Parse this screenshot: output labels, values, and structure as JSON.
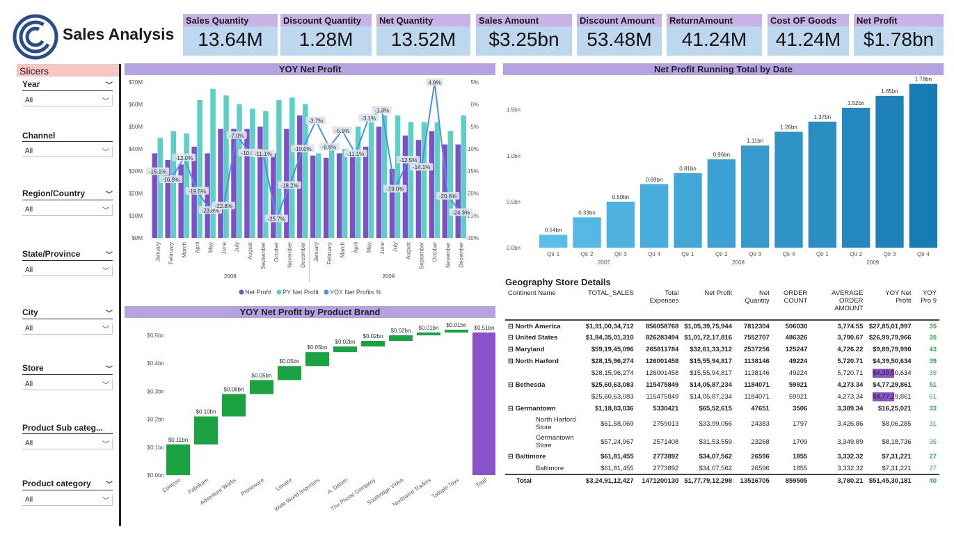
{
  "header": {
    "title": "Sales Analysis",
    "logo_icon": "logo-c-icon"
  },
  "kpis": [
    {
      "label": "Sales Quantity",
      "value": "13.64M"
    },
    {
      "label": "Discount Quantity",
      "value": "1.28M"
    },
    {
      "label": "Net Quantity",
      "value": "13.52M"
    },
    {
      "label": "Sales Amount",
      "value": "$3.25bn"
    },
    {
      "label": "Discount Amount",
      "value": "53.48M"
    },
    {
      "label": "ReturnAmount",
      "value": "41.24M"
    },
    {
      "label": "Cost OF Goods",
      "value": "41.24M"
    },
    {
      "label": "Net Profit",
      "value": "$1.78bn"
    }
  ],
  "slicers": {
    "title": "Slicers",
    "items": [
      {
        "name": "Year",
        "value": "All"
      },
      {
        "name": "Channel",
        "value": "All"
      },
      {
        "name": "Region/Country",
        "value": "All"
      },
      {
        "name": "State/Province",
        "value": "All"
      },
      {
        "name": "City",
        "value": "All"
      },
      {
        "name": "Store",
        "value": "All"
      },
      {
        "name": "Product Sub categ...",
        "value": "All"
      },
      {
        "name": "Product category",
        "value": "All"
      }
    ]
  },
  "chart_data": [
    {
      "type": "bar",
      "title": "YOY Net Profit",
      "categories": [
        "January",
        "February",
        "March",
        "April",
        "May",
        "June",
        "July",
        "August",
        "September",
        "October",
        "November",
        "December",
        "January",
        "February",
        "March",
        "April",
        "May",
        "June",
        "July",
        "August",
        "September",
        "October",
        "November",
        "December"
      ],
      "groups": [
        "2008",
        "2009"
      ],
      "series": [
        {
          "name": "Net Profit",
          "color": "#7f4fc8",
          "values": [
            38,
            35,
            33,
            41,
            38,
            49,
            49,
            49,
            50,
            38,
            49,
            55,
            37,
            36,
            38,
            37,
            41,
            50,
            31,
            46,
            44,
            48,
            42,
            42
          ]
        },
        {
          "name": "PY Net Profit",
          "color": "#5ccfc6",
          "values": [
            45,
            48,
            47,
            62,
            67,
            64,
            60,
            58,
            57,
            62,
            63,
            60,
            38,
            40,
            40,
            50,
            52,
            55,
            55,
            52,
            52,
            52,
            48,
            55
          ]
        },
        {
          "name": "YOY Net Profits %",
          "color": "#4a8df0",
          "values": [
            -15.1,
            -16.9,
            -12.0,
            -19.5,
            -23.8,
            -22.8,
            -7.0,
            -10.9,
            -11.1,
            -25.7,
            -18.2,
            -10.0,
            -3.7,
            -9.6,
            -5.9,
            -11.1,
            -3.1,
            -1.3,
            -19.0,
            -12.5,
            -14.1,
            4.9,
            -20.6,
            -24.3
          ]
        }
      ],
      "data_labels": [
        "-15.1%",
        "-16.9%",
        "-12.0%",
        "-19.5%",
        "-23.8%",
        "-22.8%",
        "-7.0%",
        "-10.9%",
        "-11.1%",
        "-25.7%",
        "-18.2%",
        "-10.0%",
        "-3.7%",
        "-9.6%",
        "-5.9%",
        "-11.1%",
        "-3.1%",
        "-1.3%",
        "-19.0%",
        "-12.5%",
        "-14.1%",
        "4.9%",
        "-20.6%",
        "-24.3%"
      ],
      "y_ticks": [
        "$0M",
        "$10M",
        "$20M",
        "$30M",
        "$40M",
        "$50M",
        "$60M",
        "$70M"
      ],
      "y2_ticks": [
        "5%",
        "0%",
        "-5%",
        "-10%",
        "-15%",
        "-20%",
        "-25%",
        "-30%"
      ],
      "ylim": [
        0,
        70
      ],
      "y2lim": [
        -30,
        5
      ]
    },
    {
      "type": "bar",
      "title": "Net Profit Running Total by Date",
      "categories": [
        "Qtr 1",
        "Qtr 2",
        "Qtr 3",
        "Qtr 4",
        "Qtr 1",
        "Qtr 2",
        "Qtr 3",
        "Qtr 4",
        "Qtr 1",
        "Qtr 2",
        "Qtr 3",
        "Qtr 4"
      ],
      "groups": [
        "2007",
        "2008",
        "2009"
      ],
      "values": [
        0.14,
        0.33,
        0.5,
        0.69,
        0.81,
        0.96,
        1.11,
        1.26,
        1.37,
        1.52,
        1.65,
        1.78
      ],
      "labels": [
        "0.14bn",
        "0.33bn",
        "0.50bn",
        "0.69bn",
        "0.81bn",
        "0.96bn",
        "1.11bn",
        "1.26bn",
        "1.37bn",
        "1.52bn",
        "1.65bn",
        "1.78bn"
      ],
      "y_ticks": [
        "0.0bn",
        "0.5bn",
        "1.0bn",
        "1.5bn"
      ],
      "ylim": [
        0,
        1.8
      ]
    },
    {
      "type": "bar",
      "title": "YOY Net Profit by Product Brand",
      "categories": [
        "Contoso",
        "Fabrikam",
        "Adventure Works",
        "Proseware",
        "Litware",
        "Wide World Importers",
        "A. Datum",
        "The Phone Company",
        "Southridge Video",
        "Northwind Traders",
        "Tailspin Toys",
        "Total"
      ],
      "values": [
        0.11,
        0.1,
        0.08,
        0.05,
        0.05,
        0.05,
        0.02,
        0.02,
        0.02,
        0.01,
        0.01,
        0.51
      ],
      "labels": [
        "$0.11bn",
        "$0.10bn",
        "$0.08bn",
        "$0.05bn",
        "$0.05bn",
        "$0.05bn",
        "$0.02bn",
        "$0.02bn",
        "$0.02bn",
        "$0.01bn",
        "$0.01bn",
        "$0.51bn"
      ],
      "y_ticks": [
        "$0.0bn",
        "$0.1bn",
        "$0.2bn",
        "$0.3bn",
        "$0.4bn",
        "$0.5bn"
      ],
      "ylim": [
        0,
        0.5
      ]
    }
  ],
  "geography": {
    "title": "Geography Store Details",
    "columns": [
      "Continent Name",
      "TOTAL_SALES",
      "Total Expenses",
      "Net Profit",
      "Net Quantity",
      "ORDER COUNT",
      "AVERAGE ORDER AMOUNT",
      "YOY Net Profit",
      "YOY Pro 9"
    ],
    "rows": [
      {
        "ind": "⊟",
        "name": "North America",
        "bold": true,
        "v": [
          "$1,91,00,34,712",
          "856058768",
          "$1,05,39,75,944",
          "7812304",
          "506030",
          "3,774.55",
          "$27,85,01,997",
          "35"
        ]
      },
      {
        "ind": "⊟",
        "name": "United States",
        "bold": true,
        "v": [
          "$1,84,35,01,310",
          "826283494",
          "$1,01,72,17,816",
          "7552707",
          "486326",
          "3,790.67",
          "$26,99,79,966",
          "35"
        ]
      },
      {
        "ind": "⊟",
        "name": "Maryland",
        "bold": true,
        "v": [
          "$59,19,45,096",
          "265811784",
          "$32,61,33,312",
          "2537256",
          "125247",
          "4,726.22",
          "$9,89,79,990",
          "43"
        ]
      },
      {
        "ind": "⊟",
        "name": "North Harford",
        "bold": true,
        "v": [
          "$28,15,96,274",
          "126001458",
          "$15,55,94,817",
          "1138146",
          "49224",
          "5,720.71",
          "$4,39,50,634",
          "39"
        ]
      },
      {
        "ind": "",
        "name": "",
        "bold": false,
        "v": [
          "$28,15,96,274",
          "126001458",
          "$15,55,94,817",
          "1138146",
          "49224",
          "5,720.71",
          "$4,39,50,634",
          "39"
        ]
      },
      {
        "ind": "⊟",
        "name": "Bethesda",
        "bold": true,
        "v": [
          "$25,60,63,083",
          "115475849",
          "$14,05,87,234",
          "1184071",
          "59921",
          "4,273.34",
          "$4,77,29,861",
          "51"
        ]
      },
      {
        "ind": "",
        "name": "",
        "bold": false,
        "v": [
          "$25,60,63,083",
          "115475849",
          "$14,05,87,234",
          "1184071",
          "59921",
          "4,273.34",
          "$4,77,29,861",
          "51"
        ]
      },
      {
        "ind": "⊟",
        "name": "Germantown",
        "bold": true,
        "v": [
          "$1,18,83,036",
          "5330421",
          "$65,52,615",
          "47651",
          "3506",
          "3,389.34",
          "$16,25,021",
          "33"
        ]
      },
      {
        "ind": "",
        "name": "North Harford Store",
        "bold": false,
        "v": [
          "$61,58,069",
          "2759013",
          "$33,99,056",
          "24383",
          "1797",
          "3,426.86",
          "$8,06,285",
          "31"
        ]
      },
      {
        "ind": "",
        "name": "Germantown Store",
        "bold": false,
        "v": [
          "$57,24,967",
          "2571408",
          "$31,53,559",
          "23268",
          "1709",
          "3,349.89",
          "$8,18,736",
          "35"
        ]
      },
      {
        "ind": "⊟",
        "name": "Baltimore",
        "bold": true,
        "v": [
          "$61,81,455",
          "2773892",
          "$34,07,562",
          "26596",
          "1855",
          "3,332.32",
          "$7,31,221",
          "27"
        ]
      },
      {
        "ind": "",
        "name": "Baltimore",
        "bold": false,
        "v": [
          "$61,81,455",
          "2773892",
          "$34,07,562",
          "26596",
          "1855",
          "3,332.32",
          "$7,31,221",
          "27"
        ]
      }
    ],
    "total": {
      "name": "Total",
      "v": [
        "$3,24,91,12,427",
        "1471200130",
        "$1,77,79,12,298",
        "13516705",
        "859505",
        "3,780.21",
        "$51,45,30,181",
        "40"
      ]
    }
  }
}
